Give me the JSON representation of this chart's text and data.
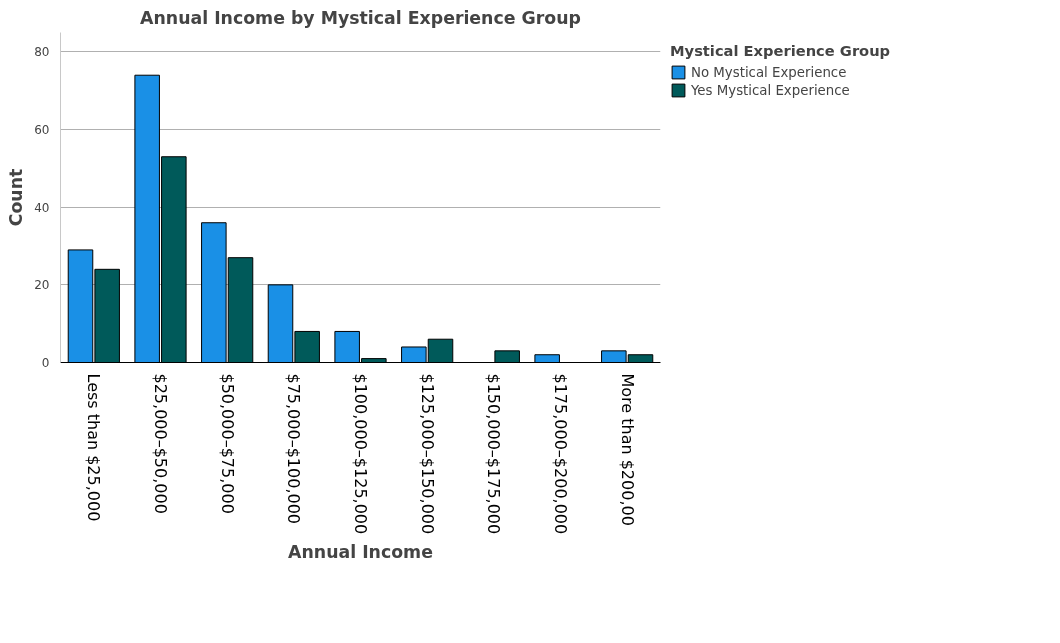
{
  "chart_data": {
    "type": "bar",
    "title": "Annual Income by Mystical Experience Group",
    "xlabel": "Annual Income",
    "ylabel": "Count",
    "legend_title": "Mystical Experience Group",
    "categories": [
      "Less than $25,000",
      "$25,000–$50,000",
      "$50,000–$75,000",
      "$75,000–$100,000",
      "$100,000–$125,000",
      "$125,000–$150,000",
      "$150,000–$175,000",
      "$175,000–$200,000",
      "More than $200,00"
    ],
    "series": [
      {
        "name": "No Mystical Experience",
        "color": "#1a90e6",
        "values": [
          29,
          74,
          36,
          20,
          8,
          4,
          null,
          2,
          3
        ]
      },
      {
        "name": "Yes Mystical Experience",
        "color": "#005a5a",
        "values": [
          24,
          53,
          27,
          8,
          1,
          6,
          3,
          null,
          2
        ]
      }
    ],
    "ylim": [
      0,
      85
    ],
    "yticks": [
      0,
      20,
      40,
      60,
      80
    ],
    "grid": "y",
    "legend": "right"
  }
}
